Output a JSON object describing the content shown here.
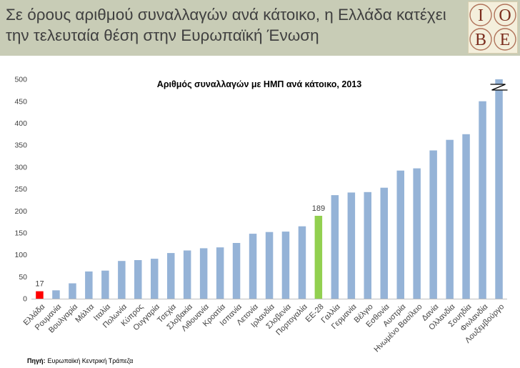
{
  "header": {
    "title_line1": "Σε όρους αριθμού συναλλαγών ανά κάτοικο, η Ελλάδα κατέχει",
    "title_line2": "την τελευταία θέση στην Ευρωπαϊκή Ένωση",
    "logo_letters": [
      "I",
      "O",
      "B",
      "E"
    ]
  },
  "colors": {
    "header_bg": "#c8ccb6",
    "title_text": "#404040",
    "bar": "#95b3d7",
    "logo_bg": "#f4efdc",
    "logo_ink": "#7b2d1e",
    "logo_ring": "#b0735a"
  },
  "chart_data": {
    "type": "bar",
    "title": "Αριθμός συναλλαγών με ΗΜΠ ανά κάτοικο, 2013",
    "categories": [
      "Ελλάδα",
      "Ρουμανία",
      "Βουλγαρία",
      "Μάλτα",
      "Ιταλία",
      "Πολωνία",
      "Κύπρος",
      "Ουγγαρία",
      "Τσεχία",
      "Σλοβακία",
      "Λιθουανία",
      "Κροατία",
      "Ισπανία",
      "Λετονία",
      "Ιρλανδία",
      "Σλοβενία",
      "Πορτογαλία",
      "ΕΕ-28",
      "Γαλλία",
      "Γερμανία",
      "Βέλγιο",
      "Εσθονία",
      "Αυστρία",
      "Ηνωμένο Βασίλειο",
      "Δανία",
      "Ολλανδία",
      "Σουηδία",
      "Φινλανδία",
      "Λουξεμβούργο"
    ],
    "values": [
      17,
      19,
      35,
      62,
      64,
      86,
      88,
      91,
      104,
      110,
      115,
      117,
      127,
      148,
      152,
      153,
      165,
      189,
      236,
      242,
      243,
      253,
      292,
      297,
      338,
      362,
      375,
      450,
      500
    ],
    "ylim": [
      0,
      500
    ],
    "yticks": [
      0,
      50,
      100,
      150,
      200,
      250,
      300,
      350,
      400,
      450,
      500
    ],
    "highlight_colors": [
      {
        "category": "Ελλάδα",
        "color": "#ff0000"
      },
      {
        "category": "ΕΕ-28",
        "color": "#92d050"
      }
    ],
    "data_labels": [
      {
        "category": "Ελλάδα",
        "text": "17"
      },
      {
        "category": "ΕΕ-28",
        "text": "189"
      }
    ],
    "axis_break": "Λουξεμβούργο",
    "grid": false,
    "legend": "none"
  },
  "source": {
    "label": "Πηγή:",
    "text": "Ευρωπαϊκή Κεντρική Τράπεζα"
  }
}
